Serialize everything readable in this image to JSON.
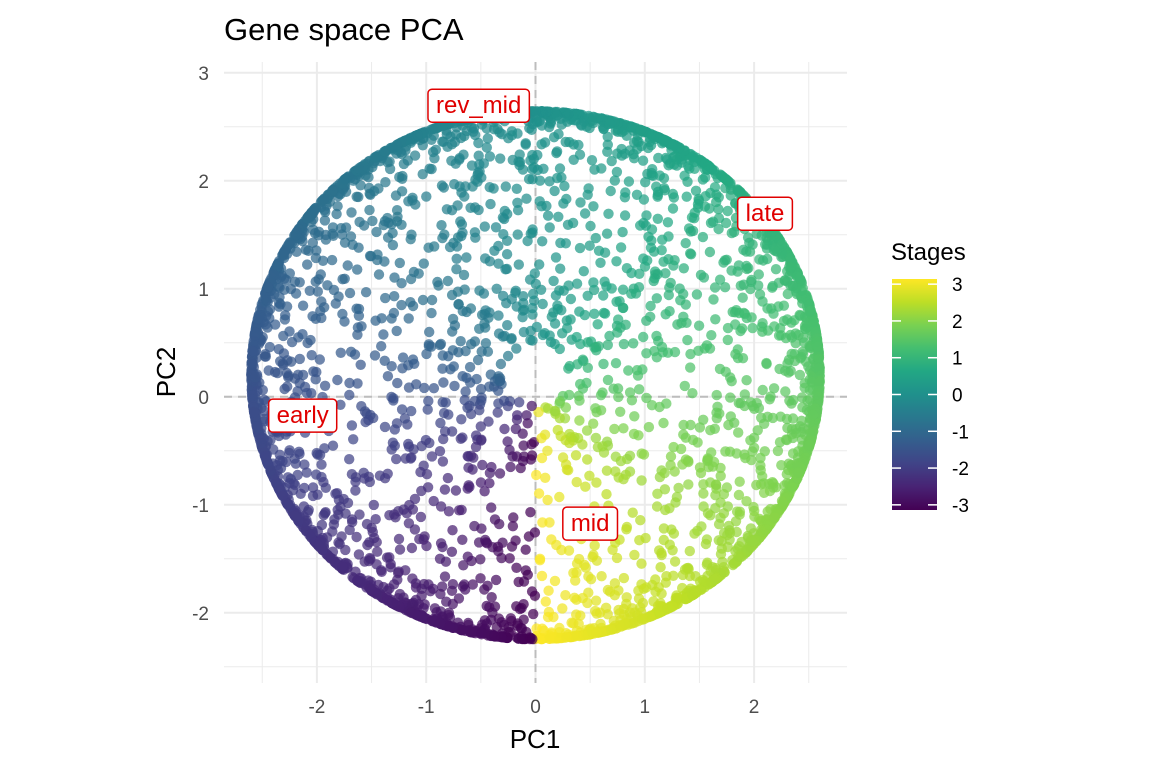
{
  "chart_data": {
    "type": "scatter",
    "title": "Gene space PCA",
    "xlabel": "PC1",
    "ylabel": "PC2",
    "xlim": [
      -2.85,
      2.85
    ],
    "ylim": [
      -2.65,
      3.1
    ],
    "xticks": [
      -2,
      -1,
      0,
      1,
      2
    ],
    "xtick_labels": [
      "-2",
      "-1",
      "0",
      "1",
      "2"
    ],
    "yticks": [
      -2,
      -1,
      0,
      1,
      2,
      3
    ],
    "ytick_labels": [
      "-2",
      "-1",
      "0",
      "1",
      "2",
      "3"
    ],
    "grid": true,
    "reference_lines": {
      "x": 0,
      "y": 0,
      "style": "dashed"
    },
    "colorscale": "viridis",
    "color_variable": "Stages",
    "point_color_rule": "atan2(PC1, PC2)",
    "legend": {
      "title": "Stages",
      "ticks": [
        3,
        2,
        1,
        0,
        -1,
        -2,
        -3
      ],
      "tick_labels": [
        "3",
        "2",
        "1",
        "0",
        "-1",
        "-2",
        "-3"
      ],
      "range": [
        -3.14,
        3.14
      ],
      "placement": "right"
    },
    "point_distribution": {
      "description": "points fill a disk, densest along the outer circle",
      "radius_range": [
        0.3,
        2.6
      ],
      "y_scale": 0.94,
      "y_offset": 0.2,
      "count": 3600
    },
    "annotations": [
      {
        "text": "rev_mid",
        "x": -0.52,
        "y": 2.7
      },
      {
        "text": "late",
        "x": 2.1,
        "y": 1.7
      },
      {
        "text": "early",
        "x": -2.13,
        "y": -0.17
      },
      {
        "text": "mid",
        "x": 0.5,
        "y": -1.17
      }
    ],
    "colors": {
      "annotation": "#e00000",
      "grid": "#ebebeb",
      "reference_line": "#bdbdbd"
    }
  }
}
